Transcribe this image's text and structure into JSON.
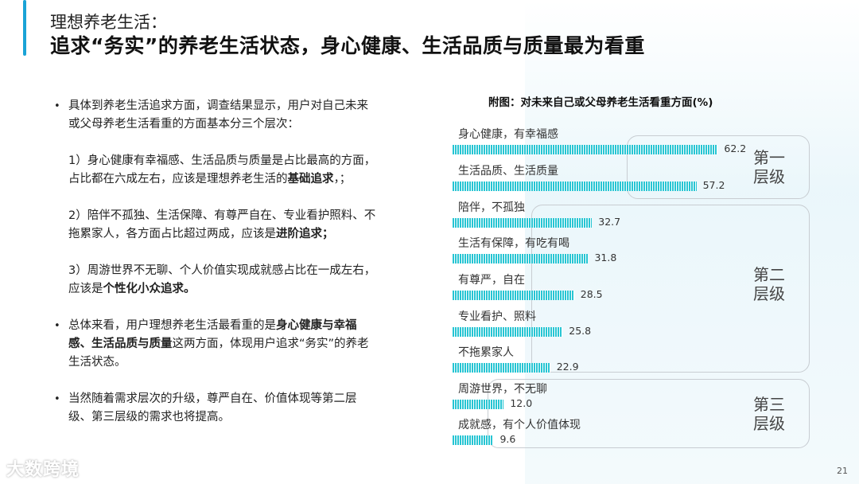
{
  "header": {
    "subtitle": "理想养老生活：",
    "title": "追求“务实”的养老生活状态，身心健康、生活品质与质量最为看重"
  },
  "left": {
    "b1": "具体到养老生活追求方面，调查结果显示，用户对自己未来或父母养老生活看重的方面基本分三个层次：",
    "p1_pre": "1）身心健康有幸福感、生活品质与质量是占比最高的方面，占比都在六成左右，应该是理想养老生活的",
    "p1_bold": "基础追求",
    "p1_post": "，；",
    "p2_pre": "2）陪伴不孤独、生活保障、有尊严自在、专业看护照料、不拖累家人，各方面占比超过两成，应该是",
    "p2_bold": "进阶追求；",
    "p3_pre": "3）周游世界不无聊、个人价值实现成就感占比在一成左右，应该是",
    "p3_bold": "个性化小众追求。",
    "b2_pre": "总体来看，用户理想养老生活最看重的是",
    "b2_bold": "身心健康与幸福感、生活品质与质量",
    "b2_post": "这两方面，体现用户追求“务实”的养老生活状态。",
    "b3": "当然随着需求层次的升级，尊严自在、价值体现等第二层级、第三层级的需求也将提高。"
  },
  "tiers": [
    "第一层级",
    "第二层级",
    "第三层级"
  ],
  "tier_lines": {
    "t1a": "第一",
    "t1b": "层级",
    "t2a": "第二",
    "t2b": "层级",
    "t3a": "第三",
    "t3b": "层级"
  },
  "page_number": "21",
  "logo_text": "大数跨境",
  "colors": {
    "bar": "#27c5d3",
    "accent": "#1aa3d6"
  },
  "chart_data": {
    "type": "bar",
    "orientation": "horizontal",
    "title": "附图：对未来自己或父母养老生活看重方面(%)",
    "categories": [
      "身心健康，有幸福感",
      "生活品质、生活质量",
      "陪伴，不孤独",
      "生活有保障，有吃有喝",
      "有尊严，自在",
      "专业看护、照料",
      "不拖累家人",
      "周游世界，不无聊",
      "成就感，有个人价值体现"
    ],
    "values": [
      62.2,
      57.2,
      32.7,
      31.8,
      28.5,
      25.8,
      22.9,
      12.0,
      9.6
    ],
    "value_labels": [
      "62.2",
      "57.2",
      "32.7",
      "31.8",
      "28.5",
      "25.8",
      "22.9",
      "12.0",
      "9.6"
    ],
    "groups": [
      {
        "name": "第一层级",
        "members": [
          0,
          1
        ]
      },
      {
        "name": "第二层级",
        "members": [
          2,
          3,
          4,
          5,
          6
        ]
      },
      {
        "name": "第三层级",
        "members": [
          7,
          8
        ]
      }
    ],
    "xlabel": "",
    "ylabel": "",
    "grid": false,
    "legend": false
  }
}
